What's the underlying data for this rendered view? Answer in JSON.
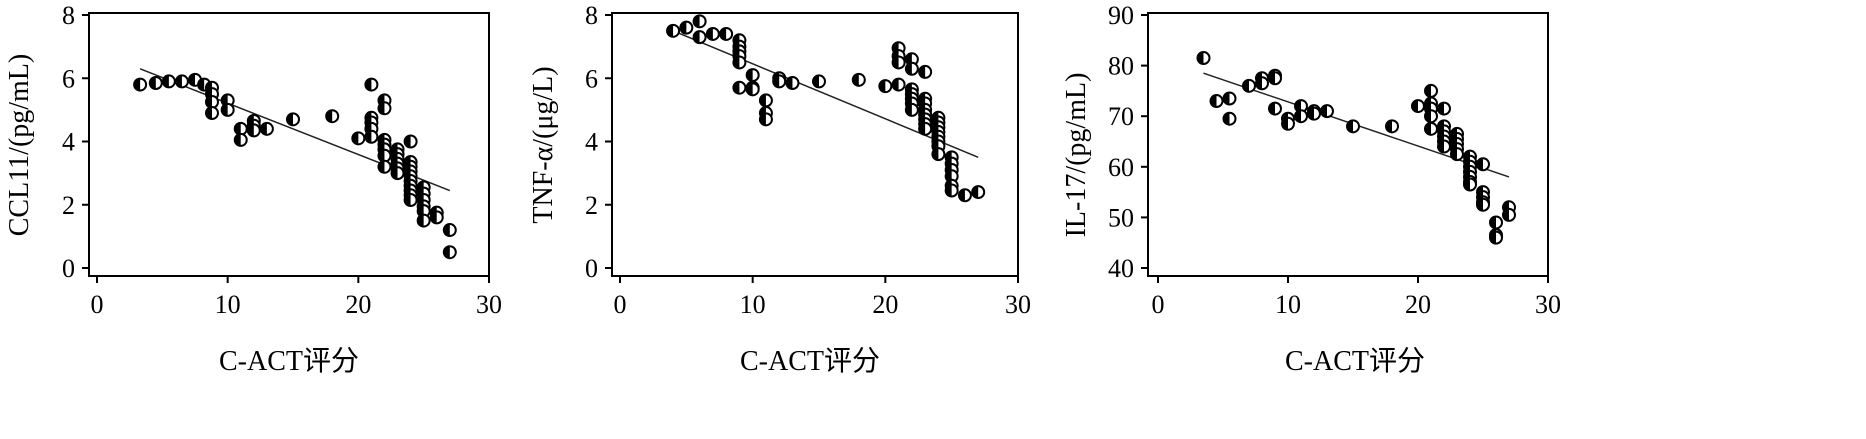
{
  "chart_data": [
    {
      "type": "scatter",
      "xlabel": "C-ACT评分",
      "ylabel": "CCL11/(pg/mL)",
      "xlim": [
        0,
        30
      ],
      "ylim": [
        0,
        8
      ],
      "xticks": [
        "0",
        "10",
        "20",
        "30"
      ],
      "yticks": [
        "0",
        "2",
        "4",
        "6",
        "8"
      ],
      "trendline": [
        [
          3.3,
          6.3
        ],
        [
          27,
          2.45
        ]
      ],
      "points": [
        [
          3.3,
          5.8
        ],
        [
          4.5,
          5.85
        ],
        [
          5.5,
          5.9
        ],
        [
          6.5,
          5.9
        ],
        [
          7.5,
          5.95
        ],
        [
          8.2,
          5.8
        ],
        [
          8.8,
          5.7
        ],
        [
          8.8,
          5.5
        ],
        [
          8.8,
          5.25
        ],
        [
          8.8,
          4.9
        ],
        [
          10,
          5.3
        ],
        [
          10,
          5.0
        ],
        [
          11,
          4.4
        ],
        [
          11,
          4.05
        ],
        [
          12,
          4.65
        ],
        [
          12,
          4.5
        ],
        [
          12,
          4.35
        ],
        [
          13,
          4.4
        ],
        [
          15,
          4.7
        ],
        [
          18,
          4.8
        ],
        [
          20,
          4.1
        ],
        [
          21,
          5.8
        ],
        [
          21,
          4.75
        ],
        [
          21,
          4.6
        ],
        [
          21,
          4.4
        ],
        [
          21,
          4.15
        ],
        [
          22,
          5.3
        ],
        [
          22,
          5.05
        ],
        [
          22,
          4.05
        ],
        [
          22,
          3.9
        ],
        [
          22,
          3.75
        ],
        [
          22,
          3.55
        ],
        [
          22,
          3.2
        ],
        [
          23,
          3.75
        ],
        [
          23,
          3.6
        ],
        [
          23,
          3.45
        ],
        [
          23,
          3.3
        ],
        [
          23,
          3.15
        ],
        [
          23,
          3.0
        ],
        [
          24,
          4.0
        ],
        [
          24,
          3.35
        ],
        [
          24,
          3.2
        ],
        [
          24,
          3.05
        ],
        [
          24,
          2.9
        ],
        [
          24,
          2.75
        ],
        [
          24,
          2.6
        ],
        [
          24,
          2.45
        ],
        [
          24,
          2.3
        ],
        [
          24,
          2.15
        ],
        [
          25,
          2.55
        ],
        [
          25,
          2.35
        ],
        [
          25,
          2.15
        ],
        [
          25,
          1.95
        ],
        [
          25,
          1.8
        ],
        [
          25,
          1.5
        ],
        [
          26,
          1.75
        ],
        [
          26,
          1.6
        ],
        [
          27,
          1.2
        ],
        [
          27,
          0.5
        ]
      ]
    },
    {
      "type": "scatter",
      "xlabel": "C-ACT评分",
      "ylabel": "TNF-α/(μg/L)",
      "xlim": [
        0,
        30
      ],
      "ylim": [
        0,
        8
      ],
      "xticks": [
        "0",
        "10",
        "20",
        "30"
      ],
      "yticks": [
        "0",
        "2",
        "4",
        "6",
        "8"
      ],
      "trendline": [
        [
          4,
          7.5
        ],
        [
          27,
          3.5
        ]
      ],
      "points": [
        [
          4,
          7.5
        ],
        [
          5,
          7.6
        ],
        [
          6,
          7.8
        ],
        [
          6,
          7.3
        ],
        [
          7,
          7.4
        ],
        [
          8,
          7.4
        ],
        [
          9,
          7.2
        ],
        [
          9,
          7.0
        ],
        [
          9,
          6.85
        ],
        [
          9,
          6.7
        ],
        [
          9,
          6.5
        ],
        [
          9,
          5.7
        ],
        [
          10,
          6.1
        ],
        [
          10,
          5.7
        ],
        [
          10,
          5.65
        ],
        [
          11,
          5.3
        ],
        [
          11,
          4.9
        ],
        [
          11,
          4.7
        ],
        [
          12,
          6.0
        ],
        [
          12,
          5.9
        ],
        [
          13,
          5.85
        ],
        [
          15,
          5.9
        ],
        [
          18,
          5.95
        ],
        [
          20,
          5.75
        ],
        [
          21,
          6.95
        ],
        [
          21,
          6.7
        ],
        [
          21,
          6.5
        ],
        [
          21,
          5.8
        ],
        [
          22,
          6.6
        ],
        [
          22,
          6.3
        ],
        [
          22,
          5.65
        ],
        [
          22,
          5.5
        ],
        [
          22,
          5.35
        ],
        [
          22,
          5.2
        ],
        [
          22,
          5.0
        ],
        [
          23,
          6.2
        ],
        [
          23,
          5.35
        ],
        [
          23,
          5.2
        ],
        [
          23,
          5.0
        ],
        [
          23,
          4.85
        ],
        [
          23,
          4.7
        ],
        [
          23,
          4.55
        ],
        [
          23,
          4.4
        ],
        [
          24,
          4.75
        ],
        [
          24,
          4.6
        ],
        [
          24,
          4.45
        ],
        [
          24,
          4.3
        ],
        [
          24,
          4.15
        ],
        [
          24,
          4.0
        ],
        [
          24,
          3.85
        ],
        [
          24,
          3.6
        ],
        [
          25,
          3.5
        ],
        [
          25,
          3.3
        ],
        [
          25,
          3.1
        ],
        [
          25,
          2.9
        ],
        [
          25,
          2.6
        ],
        [
          25,
          2.45
        ],
        [
          26,
          2.3
        ],
        [
          27,
          2.4
        ]
      ]
    },
    {
      "type": "scatter",
      "xlabel": "C-ACT评分",
      "ylabel": "IL-17/(pg/mL)",
      "xlim": [
        0,
        30
      ],
      "ylim": [
        40,
        90
      ],
      "xticks": [
        "0",
        "10",
        "20",
        "30"
      ],
      "yticks": [
        "40",
        "50",
        "60",
        "70",
        "80",
        "90"
      ],
      "trendline": [
        [
          3.5,
          78.5
        ],
        [
          27,
          58
        ]
      ],
      "points": [
        [
          3.5,
          81.5
        ],
        [
          4.5,
          73
        ],
        [
          5.5,
          73.5
        ],
        [
          5.5,
          69.5
        ],
        [
          7,
          76
        ],
        [
          8,
          77.5
        ],
        [
          8,
          76.5
        ],
        [
          9,
          78
        ],
        [
          9,
          77.5
        ],
        [
          9,
          71.5
        ],
        [
          10,
          69.5
        ],
        [
          10,
          68.5
        ],
        [
          11,
          72
        ],
        [
          11,
          70
        ],
        [
          12,
          71
        ],
        [
          12,
          70.5
        ],
        [
          13,
          71
        ],
        [
          15,
          68
        ],
        [
          18,
          68
        ],
        [
          20,
          72
        ],
        [
          21,
          75
        ],
        [
          21,
          72.5
        ],
        [
          21,
          71.5
        ],
        [
          21,
          70
        ],
        [
          21,
          67.5
        ],
        [
          22,
          71.5
        ],
        [
          22,
          68
        ],
        [
          22,
          67
        ],
        [
          22,
          66
        ],
        [
          22,
          65
        ],
        [
          22,
          64
        ],
        [
          23,
          66.5
        ],
        [
          23,
          65.5
        ],
        [
          23,
          64.5
        ],
        [
          23,
          63.5
        ],
        [
          23,
          62.5
        ],
        [
          24,
          62
        ],
        [
          24,
          61
        ],
        [
          24,
          60
        ],
        [
          24,
          59
        ],
        [
          24,
          58
        ],
        [
          24,
          57
        ],
        [
          24,
          56.5
        ],
        [
          25,
          60.5
        ],
        [
          25,
          55
        ],
        [
          25,
          54
        ],
        [
          25,
          53
        ],
        [
          25,
          52.5
        ],
        [
          26,
          49
        ],
        [
          26,
          46.5
        ],
        [
          26,
          46
        ],
        [
          27,
          52
        ],
        [
          27,
          50.5
        ]
      ]
    }
  ]
}
